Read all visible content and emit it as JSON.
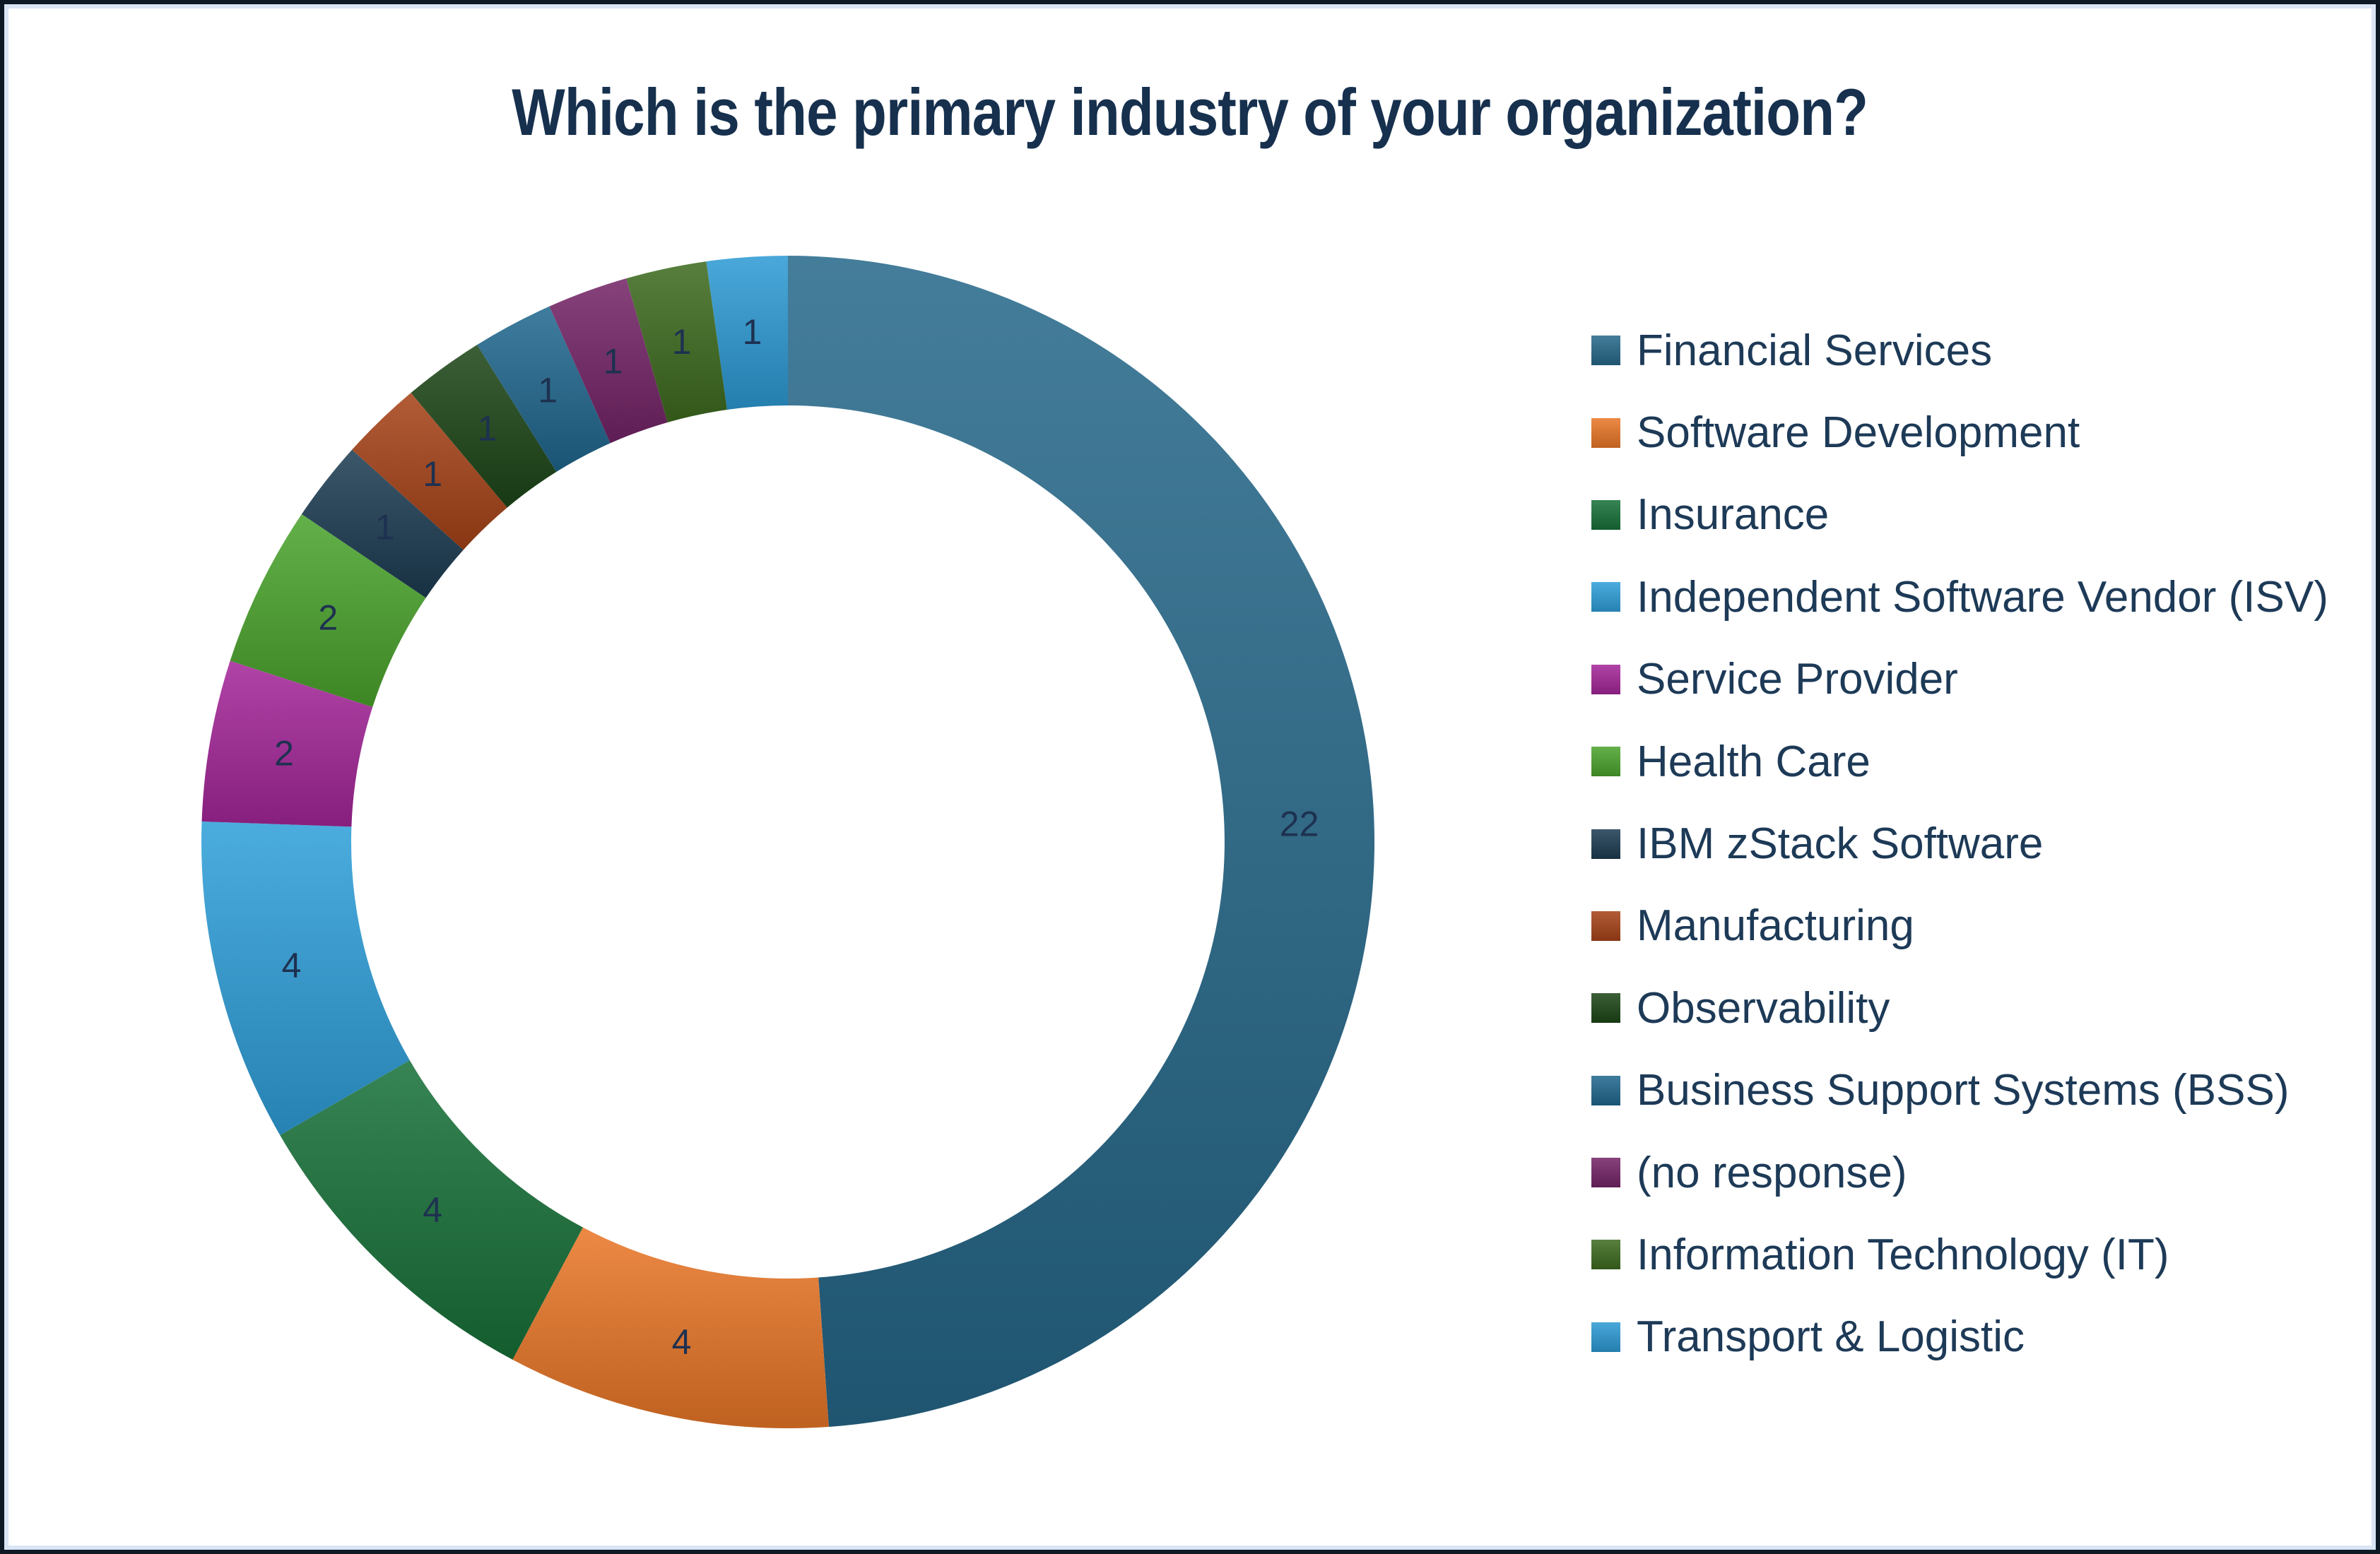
{
  "title": "Which is the primary industry of your organization?",
  "chart_data": {
    "type": "pie",
    "subtype": "donut",
    "title": "Which is the primary industry of your organization?",
    "total": 45,
    "start_angle_deg": 0,
    "direction": "clockwise",
    "inner_radius_ratio": 0.745,
    "grid": false,
    "legend_position": "right",
    "data_labels": "values",
    "label_color": "#1e3150",
    "title_color": "#16304e",
    "legend_text_color": "#1d3a57",
    "series": [
      {
        "label": "Financial Services",
        "value": 22,
        "color": "#266889"
      },
      {
        "label": "Software Development",
        "value": 4,
        "color": "#e97627"
      },
      {
        "label": "Insurance",
        "value": 4,
        "color": "#177038"
      },
      {
        "label": "Independent Software Vendor (ISV)",
        "value": 4,
        "color": "#2e9fd9"
      },
      {
        "label": "Service Provider",
        "value": 2,
        "color": "#a42699"
      },
      {
        "label": "Health Care",
        "value": 2,
        "color": "#4aa42c"
      },
      {
        "label": "IBM zStack Software",
        "value": 1,
        "color": "#1c3c52"
      },
      {
        "label": "Manufacturing",
        "value": 1,
        "color": "#a64217"
      },
      {
        "label": "Observability",
        "value": 1,
        "color": "#1c4517"
      },
      {
        "label": "Business Support Systems (BSS)",
        "value": 1,
        "color": "#20678e"
      },
      {
        "label": "(no response)",
        "value": 1,
        "color": "#732366"
      },
      {
        "label": "Information Technology (IT)",
        "value": 1,
        "color": "#3d6a1e"
      },
      {
        "label": "Transport & Logistic",
        "value": 1,
        "color": "#2c9ad4"
      }
    ]
  }
}
